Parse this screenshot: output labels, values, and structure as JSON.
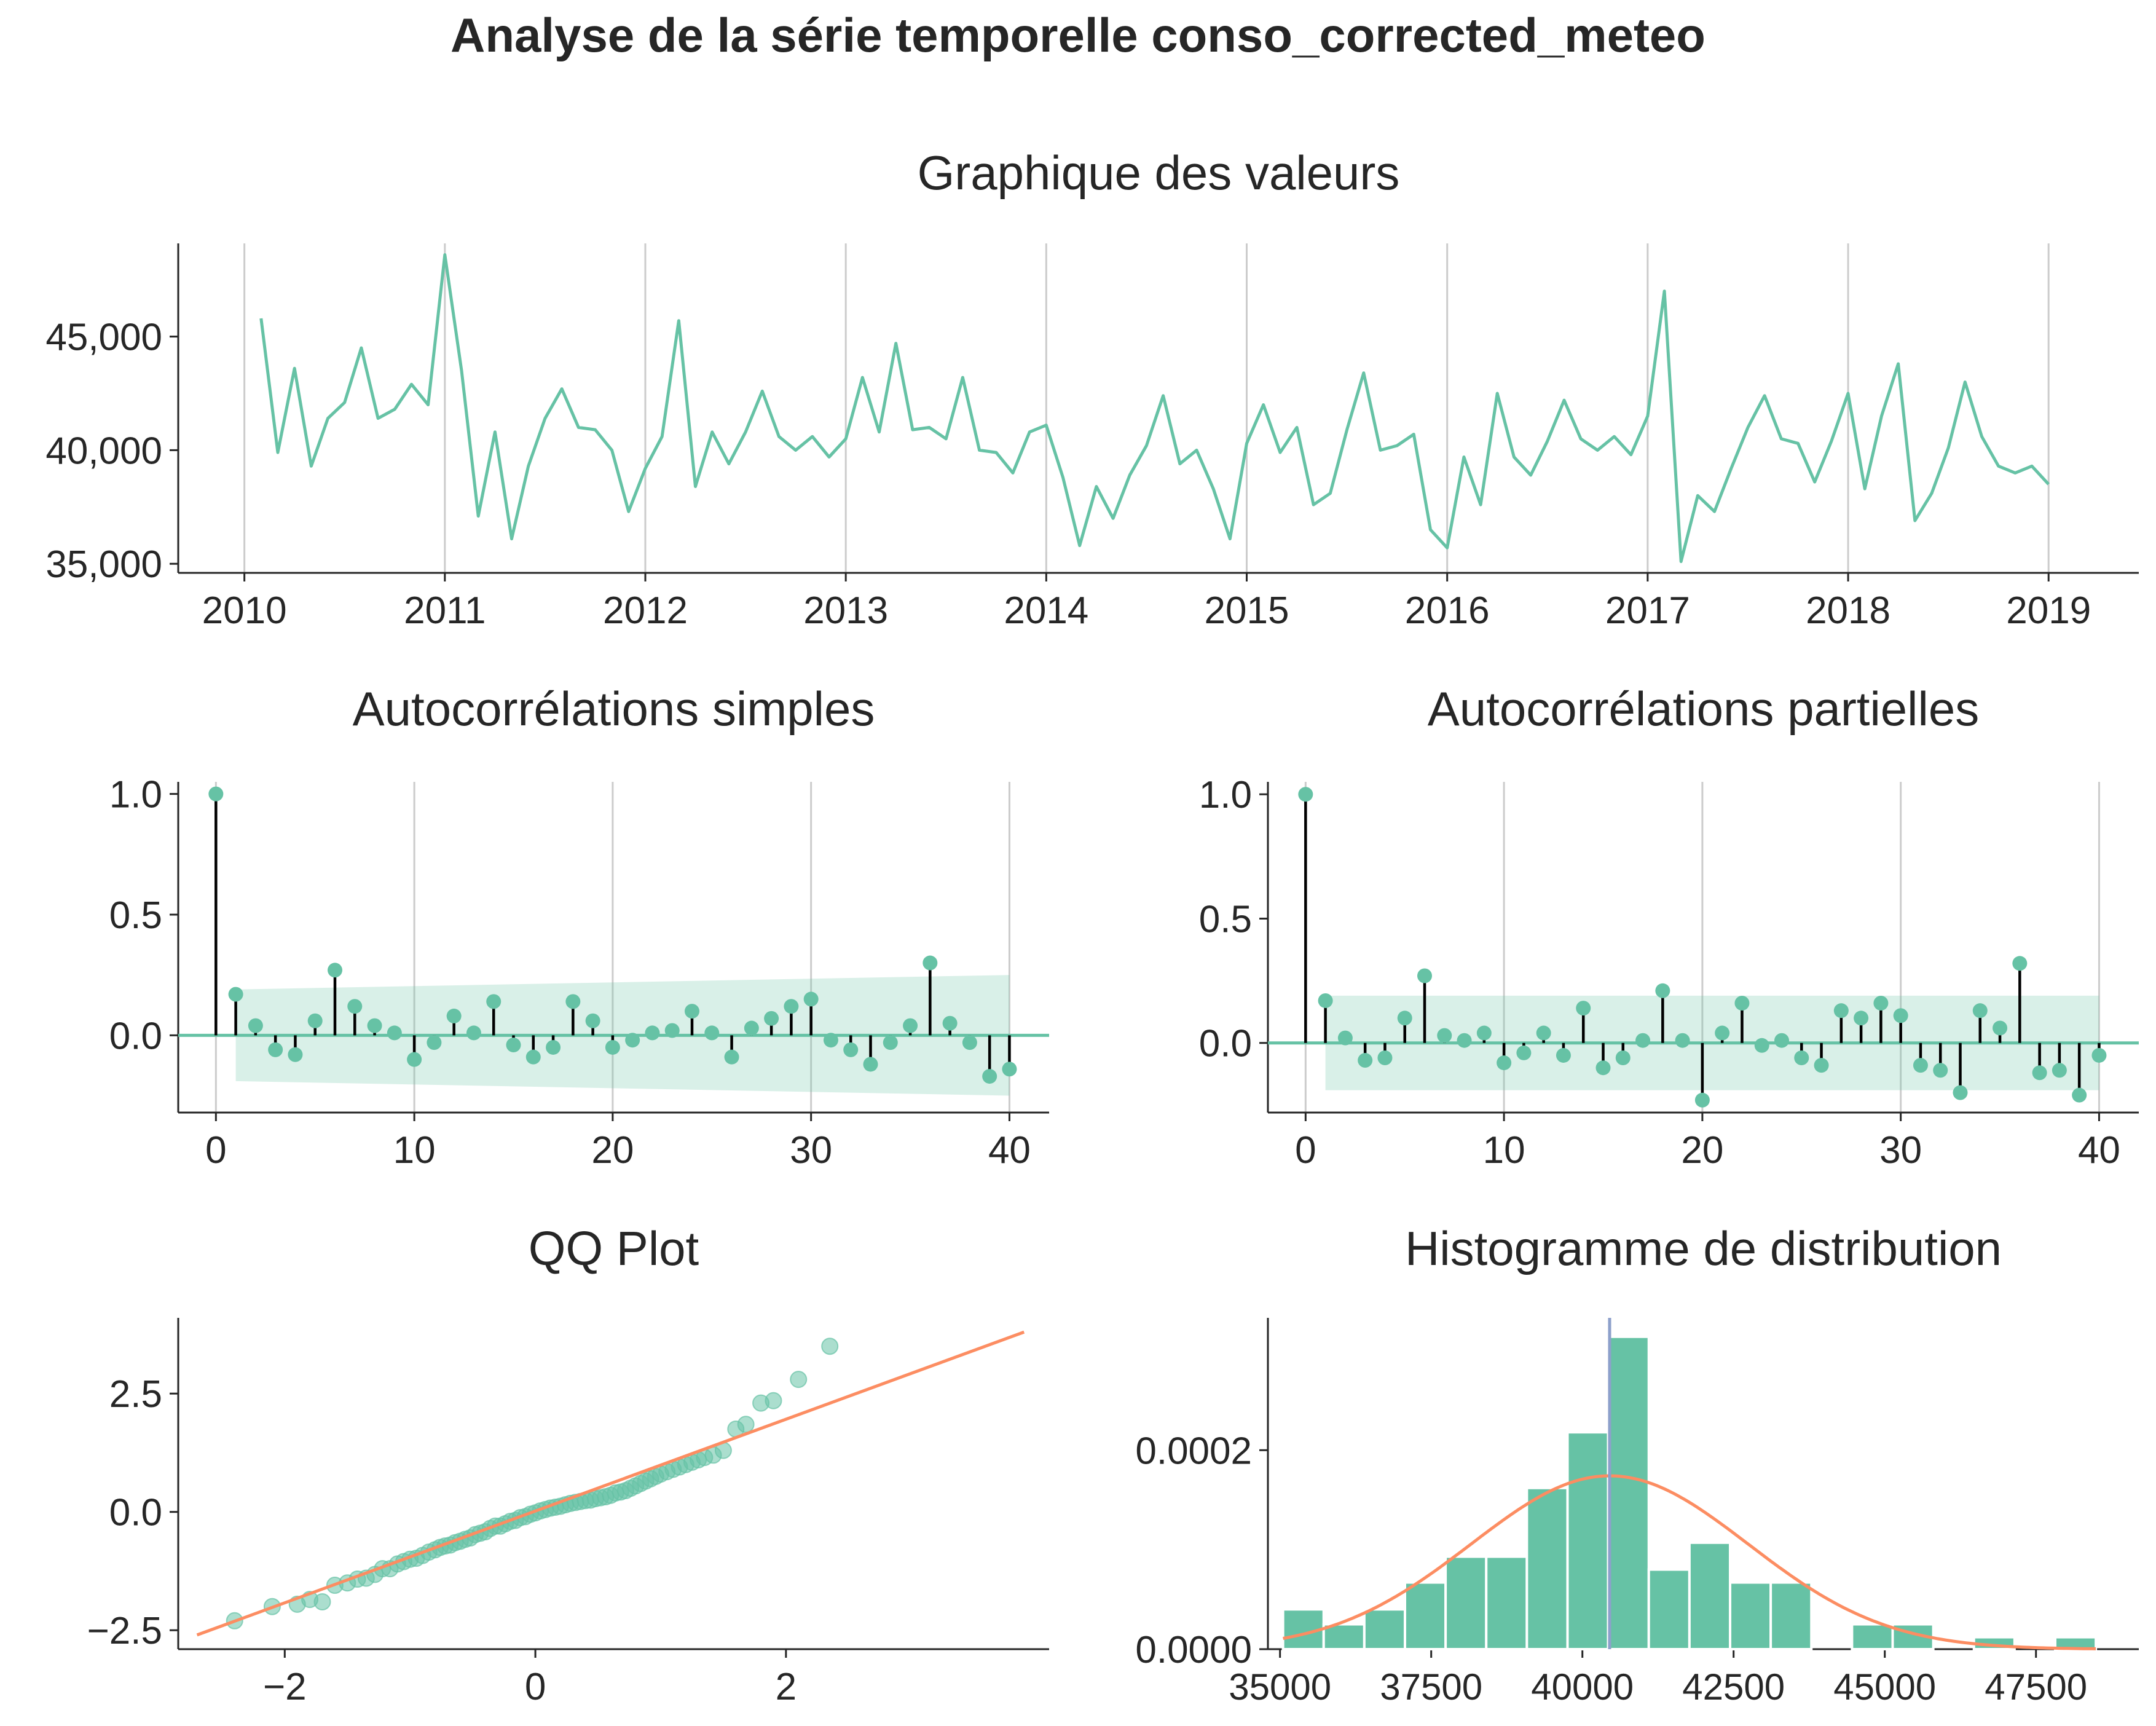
{
  "suptitle": "Analyse de la série temporelle conso_corrected_meteo",
  "colors": {
    "series": "#66c2a5",
    "orange": "#fc8d62",
    "mean_line": "#8da0cb",
    "axis": "#262626",
    "grid": "#cccccc",
    "stem": "#000000"
  },
  "chart_data": [
    {
      "id": "values",
      "type": "line",
      "title": "Graphique des valeurs",
      "xlabel": "",
      "ylabel": "",
      "xlim": [
        2009.67,
        2019.45
      ],
      "ylim": [
        34600,
        49100
      ],
      "xticks": [
        2010,
        2011,
        2012,
        2013,
        2014,
        2015,
        2016,
        2017,
        2018,
        2019
      ],
      "xtick_labels": [
        "2010",
        "2011",
        "2012",
        "2013",
        "2014",
        "2015",
        "2016",
        "2017",
        "2018",
        "2019"
      ],
      "yticks": [
        35000,
        40000,
        45000
      ],
      "ytick_labels": [
        "35,000",
        "40,000",
        "45,000"
      ],
      "grid": "x",
      "x_start": "2010-02",
      "x_step": "1 month",
      "values": [
        45800,
        39900,
        43600,
        39300,
        41400,
        42100,
        44500,
        41400,
        41800,
        42900,
        42000,
        48600,
        43500,
        37100,
        40800,
        36100,
        39300,
        41400,
        42700,
        41000,
        40900,
        40000,
        37300,
        39200,
        40600,
        45700,
        38400,
        40800,
        39400,
        40800,
        42600,
        40600,
        40000,
        40600,
        39700,
        40500,
        43200,
        40800,
        44700,
        40900,
        41000,
        40500,
        43200,
        40000,
        39900,
        39000,
        40800,
        41100,
        38800,
        35800,
        38400,
        37000,
        38900,
        40200,
        42400,
        39400,
        40000,
        38300,
        36100,
        40300,
        42000,
        39900,
        41000,
        37600,
        38100,
        40900,
        43400,
        40000,
        40200,
        40700,
        36500,
        35700,
        39700,
        37600,
        42500,
        39700,
        38900,
        40400,
        42200,
        40500,
        40000,
        40600,
        39800,
        41500,
        47000,
        35100,
        38000,
        37300,
        39200,
        41000,
        42400,
        40500,
        40300,
        38600,
        40400,
        42500,
        38300,
        41500,
        43800,
        36900,
        38100,
        40100,
        43000,
        40600,
        39300,
        39000,
        39300,
        38500
      ]
    },
    {
      "id": "acf",
      "type": "stem",
      "title": "Autocorrélations simples",
      "xlim": [
        -1.9,
        42
      ],
      "ylim": [
        -0.32,
        1.05
      ],
      "xticks": [
        0,
        10,
        20,
        30,
        40
      ],
      "xtick_labels": [
        "0",
        "10",
        "20",
        "30",
        "40"
      ],
      "yticks": [
        0.0,
        0.5,
        1.0
      ],
      "ytick_labels": [
        "0.0",
        "0.5",
        "1.0"
      ],
      "grid": "x",
      "lags": [
        0,
        1,
        2,
        3,
        4,
        5,
        6,
        7,
        8,
        9,
        10,
        11,
        12,
        13,
        14,
        15,
        16,
        17,
        18,
        19,
        20,
        21,
        22,
        23,
        24,
        25,
        26,
        27,
        28,
        29,
        30,
        31,
        32,
        33,
        34,
        35,
        36,
        37,
        38,
        39,
        40
      ],
      "values": [
        1.0,
        0.17,
        0.04,
        -0.06,
        -0.08,
        0.06,
        0.27,
        0.12,
        0.04,
        0.01,
        -0.1,
        -0.03,
        0.08,
        0.01,
        0.14,
        -0.04,
        -0.09,
        -0.05,
        0.14,
        0.06,
        -0.05,
        -0.02,
        0.01,
        0.02,
        0.1,
        0.01,
        -0.09,
        0.03,
        0.07,
        0.12,
        0.15,
        -0.02,
        -0.06,
        -0.12,
        -0.03,
        0.04,
        0.3,
        0.05,
        -0.03,
        -0.17,
        -0.14
      ],
      "conf_band": {
        "lag_from": 1,
        "lag_to": 40,
        "upper_start": 0.19,
        "upper_end": 0.25
      }
    },
    {
      "id": "pacf",
      "type": "stem",
      "title": "Autocorrélations partielles",
      "xlim": [
        -1.9,
        42
      ],
      "ylim": [
        -0.28,
        1.05
      ],
      "xticks": [
        0,
        10,
        20,
        30,
        40
      ],
      "xtick_labels": [
        "0",
        "10",
        "20",
        "30",
        "40"
      ],
      "yticks": [
        0.0,
        0.5,
        1.0
      ],
      "ytick_labels": [
        "0.0",
        "0.5",
        "1.0"
      ],
      "grid": "x",
      "lags": [
        0,
        1,
        2,
        3,
        4,
        5,
        6,
        7,
        8,
        9,
        10,
        11,
        12,
        13,
        14,
        15,
        16,
        17,
        18,
        19,
        20,
        21,
        22,
        23,
        24,
        25,
        26,
        27,
        28,
        29,
        30,
        31,
        32,
        33,
        34,
        35,
        36,
        37,
        38,
        39,
        40
      ],
      "values": [
        1.0,
        0.17,
        0.02,
        -0.07,
        -0.06,
        0.1,
        0.27,
        0.03,
        0.01,
        0.04,
        -0.08,
        -0.04,
        0.04,
        -0.05,
        0.14,
        -0.1,
        -0.06,
        0.01,
        0.21,
        0.01,
        -0.23,
        0.04,
        0.16,
        -0.01,
        0.01,
        -0.06,
        -0.09,
        0.13,
        0.1,
        0.16,
        0.11,
        -0.09,
        -0.11,
        -0.2,
        0.13,
        0.06,
        0.32,
        -0.12,
        -0.11,
        -0.21,
        -0.05
      ],
      "conf_band": {
        "lag_from": 1,
        "lag_to": 40,
        "upper_start": 0.19,
        "upper_end": 0.19
      }
    },
    {
      "id": "qq",
      "type": "scatter",
      "title": "QQ Plot",
      "xlim": [
        -2.85,
        4.1
      ],
      "ylim": [
        -2.9,
        4.1
      ],
      "xticks": [
        -2,
        0,
        2
      ],
      "xtick_labels": [
        "−2",
        "0",
        "2"
      ],
      "yticks": [
        -2.5,
        0.0,
        2.5
      ],
      "ytick_labels": [
        "−2.5",
        "0.0",
        "2.5"
      ],
      "grid": "none",
      "points": [
        [
          -2.4,
          -2.3
        ],
        [
          -2.1,
          -2.0
        ],
        [
          -1.9,
          -1.95
        ],
        [
          -1.8,
          -1.85
        ],
        [
          -1.7,
          -1.9
        ],
        [
          -1.6,
          -1.55
        ],
        [
          -1.5,
          -1.5
        ],
        [
          -1.42,
          -1.42
        ],
        [
          -1.35,
          -1.4
        ],
        [
          -1.28,
          -1.32
        ],
        [
          -1.22,
          -1.2
        ],
        [
          -1.16,
          -1.2
        ],
        [
          -1.1,
          -1.1
        ],
        [
          -1.05,
          -1.05
        ],
        [
          -1.0,
          -1.0
        ],
        [
          -0.95,
          -0.98
        ],
        [
          -0.9,
          -0.92
        ],
        [
          -0.85,
          -0.85
        ],
        [
          -0.8,
          -0.8
        ],
        [
          -0.76,
          -0.75
        ],
        [
          -0.72,
          -0.72
        ],
        [
          -0.68,
          -0.7
        ],
        [
          -0.64,
          -0.65
        ],
        [
          -0.6,
          -0.62
        ],
        [
          -0.56,
          -0.58
        ],
        [
          -0.52,
          -0.55
        ],
        [
          -0.48,
          -0.48
        ],
        [
          -0.44,
          -0.45
        ],
        [
          -0.4,
          -0.42
        ],
        [
          -0.36,
          -0.35
        ],
        [
          -0.32,
          -0.3
        ],
        [
          -0.28,
          -0.3
        ],
        [
          -0.24,
          -0.25
        ],
        [
          -0.2,
          -0.2
        ],
        [
          -0.16,
          -0.18
        ],
        [
          -0.12,
          -0.12
        ],
        [
          -0.08,
          -0.1
        ],
        [
          -0.04,
          -0.05
        ],
        [
          0.0,
          -0.02
        ],
        [
          0.04,
          0.02
        ],
        [
          0.08,
          0.05
        ],
        [
          0.12,
          0.08
        ],
        [
          0.16,
          0.1
        ],
        [
          0.2,
          0.12
        ],
        [
          0.24,
          0.15
        ],
        [
          0.28,
          0.18
        ],
        [
          0.32,
          0.2
        ],
        [
          0.36,
          0.22
        ],
        [
          0.4,
          0.24
        ],
        [
          0.44,
          0.25
        ],
        [
          0.48,
          0.28
        ],
        [
          0.52,
          0.3
        ],
        [
          0.56,
          0.32
        ],
        [
          0.6,
          0.35
        ],
        [
          0.64,
          0.4
        ],
        [
          0.68,
          0.42
        ],
        [
          0.72,
          0.45
        ],
        [
          0.76,
          0.5
        ],
        [
          0.8,
          0.55
        ],
        [
          0.84,
          0.6
        ],
        [
          0.88,
          0.65
        ],
        [
          0.92,
          0.7
        ],
        [
          0.96,
          0.75
        ],
        [
          1.0,
          0.8
        ],
        [
          1.05,
          0.85
        ],
        [
          1.1,
          0.9
        ],
        [
          1.15,
          0.95
        ],
        [
          1.2,
          1.0
        ],
        [
          1.25,
          1.05
        ],
        [
          1.3,
          1.1
        ],
        [
          1.35,
          1.15
        ],
        [
          1.42,
          1.2
        ],
        [
          1.5,
          1.3
        ],
        [
          1.6,
          1.75
        ],
        [
          1.68,
          1.85
        ],
        [
          1.8,
          2.3
        ],
        [
          1.9,
          2.35
        ],
        [
          2.1,
          2.8
        ],
        [
          2.35,
          3.5
        ]
      ],
      "line": {
        "x": [
          -2.7,
          3.9
        ],
        "y": [
          -2.6,
          3.8
        ]
      }
    },
    {
      "id": "hist",
      "type": "bar",
      "title": "Histogramme de distribution",
      "xlim": [
        34800,
        49200
      ],
      "ylim": [
        0,
        0.000333
      ],
      "xticks": [
        35000,
        37500,
        40000,
        42500,
        45000,
        47500
      ],
      "xtick_labels": [
        "35000",
        "37500",
        "40000",
        "42500",
        "45000",
        "47500"
      ],
      "yticks": [
        0.0,
        0.0002
      ],
      "ytick_labels": [
        "0.0000",
        "0.0002"
      ],
      "grid": "none",
      "bin_start": 35050,
      "bin_width": 672,
      "densities": [
        4e-05,
        2.5e-05,
        4e-05,
        6.7e-05,
        9.3e-05,
        9.3e-05,
        0.000162,
        0.000218,
        0.000314,
        8e-05,
        0.000107,
        6.7e-05,
        6.7e-05,
        0.0,
        2.5e-05,
        2.5e-05,
        0.0,
        1.2e-05,
        0.0,
        1.2e-05
      ],
      "mean": 40450,
      "normal_curve": {
        "mean": 40450,
        "std": 2290
      }
    }
  ]
}
